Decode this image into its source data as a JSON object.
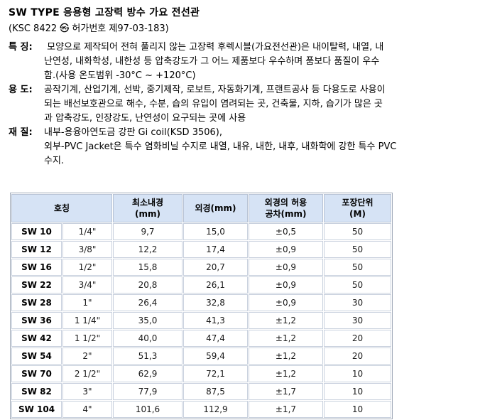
{
  "page": {
    "title": "SW TYPE 응용형 고장력 방수 가요 전선관",
    "subtitle": "(KSC 8422 ㉿ 허가번호 제97-03-183)"
  },
  "sections": [
    {
      "label": "특 징:",
      "lines": [
        " 모양으로 제작되어 전혀 풀리지 않는 고장력 후렉시블(가요전선관)은 내이탈력, 내열, 내",
        "난연성, 내화학성, 내한성 등 압축강도가 그 어느 제품보다 우수하며 품보다 품질이 우수",
        "함.(사용 온도범위 -30°C ~ +120°C)"
      ]
    },
    {
      "label": "용 도:",
      "lines": [
        "공작기계, 산업기계, 선박, 중기제작, 로보트, 자동화기계, 프랜트공사 등 다용도로 사용이",
        "되는 배선보호관으로 해수, 수분, 습의 유입이 염려되는 곳, 건축물, 지하, 습기가 많은 곳",
        "과 압축강도, 인장강도, 난연성이 요구되는 곳에 사용"
      ]
    },
    {
      "label": "재 질:",
      "lines": [
        "내부-용융아연도금 강판 Gi coil(KSD 3506),",
        "외부-PVC Jacket은 특수 염화비닐 수지로 내열, 내유, 내한, 내후, 내화학에 강한 특수 PVC",
        "수지."
      ]
    }
  ],
  "table": {
    "header": {
      "designation": "호칭",
      "columns": [
        "최소내경\n(mm)",
        "외경(mm)",
        "외경의 허용\n공차(mm)",
        "포장단위\n(M)"
      ]
    },
    "col_names": [
      "cell-model",
      "cell-inch-size",
      "cell-min-inner-diameter",
      "cell-outer-diameter",
      "cell-tolerance",
      "cell-packing-unit"
    ],
    "rows": [
      [
        "SW 10",
        "1/4\"",
        "9,7",
        "15,0",
        "±0,5",
        "50"
      ],
      [
        "SW 12",
        "3/8\"",
        "12,2",
        "17,4",
        "±0,9",
        "50"
      ],
      [
        "SW 16",
        "1/2\"",
        "15,8",
        "20,7",
        "±0,9",
        "50"
      ],
      [
        "SW 22",
        "3/4\"",
        "20,8",
        "26,1",
        "±0,9",
        "50"
      ],
      [
        "SW 28",
        "1\"",
        "26,4",
        "32,8",
        "±0,9",
        "30"
      ],
      [
        "SW 36",
        "1 1/4\"",
        "35,0",
        "41,3",
        "±1,2",
        "30"
      ],
      [
        "SW 42",
        "1 1/2\"",
        "40,0",
        "47,4",
        "±1,2",
        "20"
      ],
      [
        "SW 54",
        "2\"",
        "51,3",
        "59,4",
        "±1,2",
        "20"
      ],
      [
        "SW 70",
        "2 1/2\"",
        "62,9",
        "72,1",
        "±1,2",
        "10"
      ],
      [
        "SW 82",
        "3\"",
        "77,9",
        "87,5",
        "±1,7",
        "10"
      ],
      [
        "SW 104",
        "4\"",
        "101,6",
        "112,9",
        "±1,7",
        "10"
      ]
    ],
    "colors": {
      "header_bg": "#d6e3f5",
      "outer_border": "#9fa9b8",
      "cell_border": "#c9d1de"
    }
  }
}
